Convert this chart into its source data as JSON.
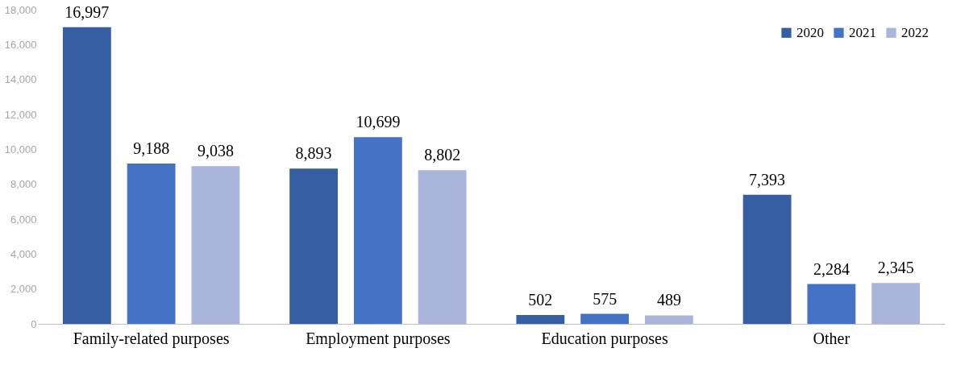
{
  "chart_data": {
    "type": "bar",
    "categories": [
      "Family-related purposes",
      "Employment purposes",
      "Education purposes",
      "Other"
    ],
    "series": [
      {
        "name": "2020",
        "color": "#355ea3",
        "values": [
          16997,
          8893,
          502,
          7393
        ],
        "value_labels": [
          "16,997",
          "8,893",
          "502",
          "7,393"
        ]
      },
      {
        "name": "2021",
        "color": "#4472c4",
        "values": [
          9188,
          10699,
          575,
          2284
        ],
        "value_labels": [
          "9,188",
          "10,699",
          "575",
          "2,284"
        ]
      },
      {
        "name": "2022",
        "color": "#a9b5da",
        "values": [
          9038,
          8802,
          489,
          2345
        ],
        "value_labels": [
          "9,038",
          "8,802",
          "489",
          "2,345"
        ]
      }
    ],
    "ylim": [
      0,
      18000
    ],
    "yticks": [
      {
        "value": 0,
        "label": "0"
      },
      {
        "value": 2000,
        "label": "2,000"
      },
      {
        "value": 4000,
        "label": "4,000"
      },
      {
        "value": 6000,
        "label": "6,000"
      },
      {
        "value": 8000,
        "label": "8,000"
      },
      {
        "value": 10000,
        "label": "10,000"
      },
      {
        "value": 12000,
        "label": "12,000"
      },
      {
        "value": 14000,
        "label": "14,000"
      },
      {
        "value": 16000,
        "label": "16,000"
      },
      {
        "value": 18000,
        "label": "18,000"
      }
    ],
    "grid": false,
    "legend": "top right"
  }
}
